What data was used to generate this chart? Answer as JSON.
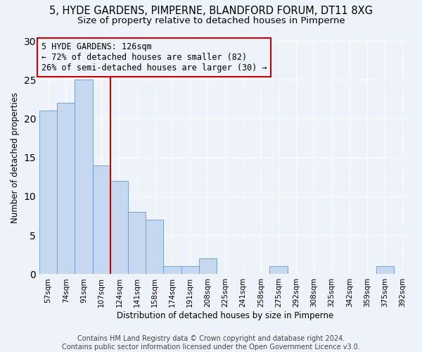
{
  "title1": "5, HYDE GARDENS, PIMPERNE, BLANDFORD FORUM, DT11 8XG",
  "title2": "Size of property relative to detached houses in Pimperne",
  "xlabel": "Distribution of detached houses by size in Pimperne",
  "ylabel": "Number of detached properties",
  "categories": [
    "57sqm",
    "74sqm",
    "91sqm",
    "107sqm",
    "124sqm",
    "141sqm",
    "158sqm",
    "174sqm",
    "191sqm",
    "208sqm",
    "225sqm",
    "241sqm",
    "258sqm",
    "275sqm",
    "292sqm",
    "308sqm",
    "325sqm",
    "342sqm",
    "359sqm",
    "375sqm",
    "392sqm"
  ],
  "values": [
    21,
    22,
    25,
    14,
    12,
    8,
    7,
    1,
    1,
    2,
    0,
    0,
    0,
    1,
    0,
    0,
    0,
    0,
    0,
    1,
    0
  ],
  "bar_color": "#c5d8f0",
  "bar_edge_color": "#6699cc",
  "vline_color": "#cc0000",
  "vline_x": 3.5,
  "annotation_line1": "5 HYDE GARDENS: 126sqm",
  "annotation_line2": "← 72% of detached houses are smaller (82)",
  "annotation_line3": "26% of semi-detached houses are larger (30) →",
  "annotation_box_color": "#cc0000",
  "ylim": [
    0,
    30
  ],
  "yticks": [
    0,
    5,
    10,
    15,
    20,
    25,
    30
  ],
  "footnote": "Contains HM Land Registry data © Crown copyright and database right 2024.\nContains public sector information licensed under the Open Government Licence v3.0.",
  "bg_color": "#eef2fa",
  "grid_color": "#ffffff",
  "title_fontsize": 10.5,
  "subtitle_fontsize": 9.5,
  "axis_label_fontsize": 8.5,
  "tick_fontsize": 7.5,
  "annotation_fontsize": 8.5,
  "footnote_fontsize": 7.0
}
